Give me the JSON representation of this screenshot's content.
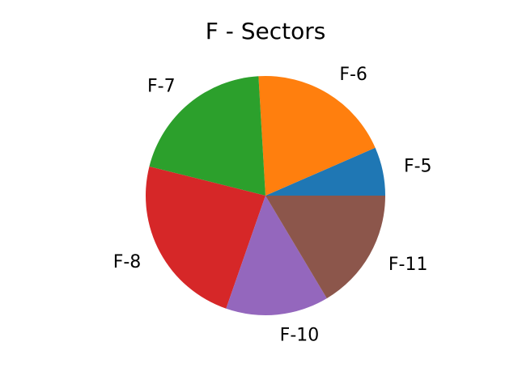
{
  "chart_data": {
    "type": "pie",
    "title": "F - Sectors",
    "labels": [
      "F-5",
      "F-6",
      "F-7",
      "F-8",
      "F-10",
      "F-11"
    ],
    "values": [
      6.7,
      19.8,
      20.6,
      24.1,
      14.2,
      16.8
    ],
    "colors": [
      "#1f77b4",
      "#ff7f0e",
      "#2ca02c",
      "#d62728",
      "#9467bd",
      "#8c564b"
    ],
    "start_angle_deg": 0,
    "direction": "counterclockwise"
  }
}
